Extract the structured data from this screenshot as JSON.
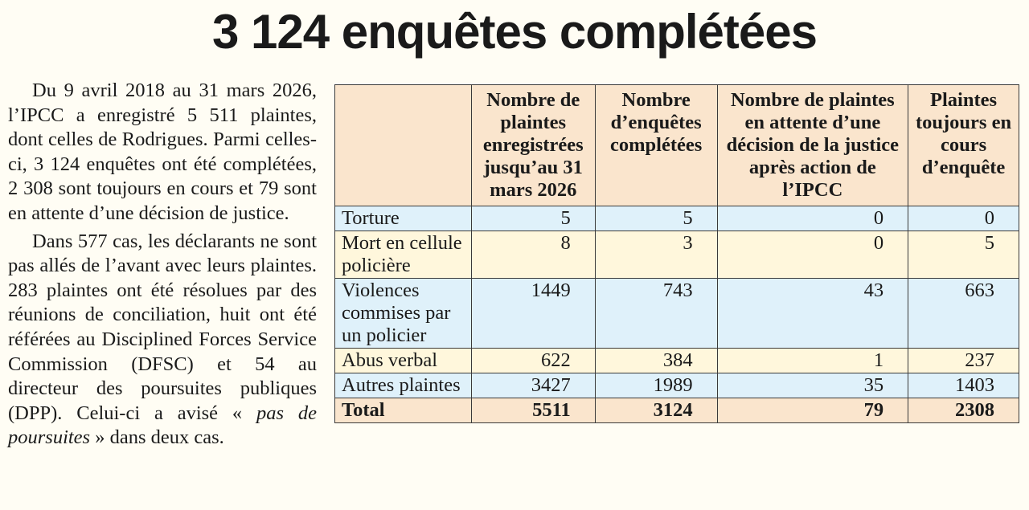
{
  "title": "3 124 enquêtes complétées",
  "paragraphs": {
    "p1": "Du 9 avril 2018 au 31 mars 2026, l’IPCC a enregistré 5 511 plaintes, dont celles de Rodrigues. Parmi celles-ci, 3 124 enquêtes ont été complétées, 2 308 sont toujours en cours et 79 sont en attente d’une décision de justice.",
    "p2_before": "Dans 577 cas, les déclarants ne sont pas allés de l’avant avec leurs plaintes. 283 plaintes ont été résolues par des réunions de conciliation, huit ont été référées au Disciplined Forces Service Commission (DFSC) et 54 au directeur des poursuites publiques (DPP). Celui-ci a avisé « ",
    "p2_em": "pas de poursuites",
    "p2_after": " » dans deux cas."
  },
  "table": {
    "headers": [
      "",
      "Nombre de plaintes enregistrées jusqu’au 31 mars 2026",
      "Nombre d’enquêtes complétées",
      "Nombre de plaintes en attente d’une décision de la justice après action de l’IPCC",
      "Plaintes toujours en cours d’enquête"
    ],
    "rows": [
      {
        "label": "Torture",
        "values": [
          "5",
          "5",
          "0",
          "0"
        ]
      },
      {
        "label": "Mort en cellule policière",
        "values": [
          "8",
          "3",
          "0",
          "5"
        ]
      },
      {
        "label": "Violences commises par un policier",
        "values": [
          "1449",
          "743",
          "43",
          "663"
        ]
      },
      {
        "label": "Abus verbal",
        "values": [
          "622",
          "384",
          "1",
          "237"
        ]
      },
      {
        "label": "Autres plaintes",
        "values": [
          "3427",
          "1989",
          "35",
          "1403"
        ]
      },
      {
        "label": "Total",
        "values": [
          "5511",
          "3124",
          "79",
          "2308"
        ]
      }
    ]
  },
  "colors": {
    "header_bg": "#fae5cd",
    "row_blue": "#dff1fa",
    "row_cream": "#fff7dc",
    "page_bg": "#fffdf4"
  }
}
